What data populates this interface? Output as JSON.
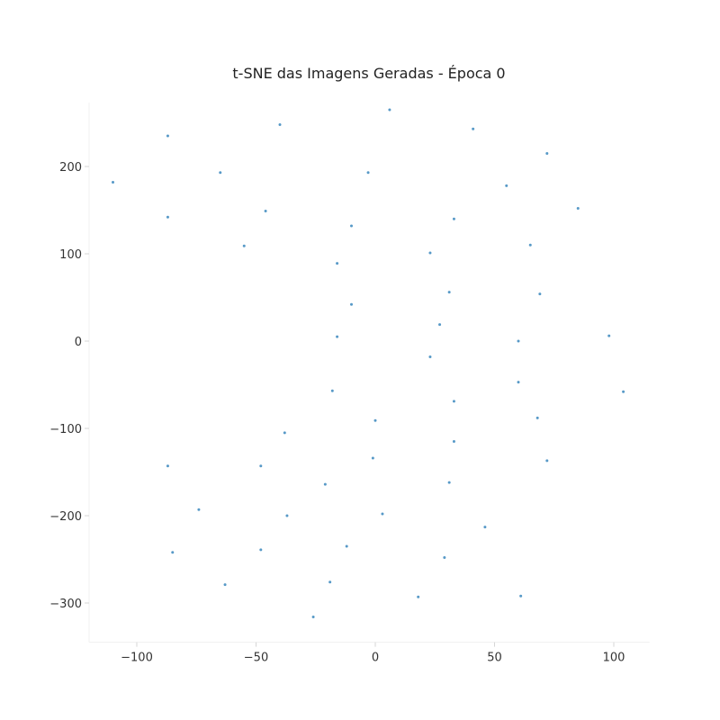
{
  "chart_data": {
    "type": "scatter",
    "title": "t-SNE das Imagens Geradas - Época 0",
    "xlabel": "",
    "ylabel": "",
    "xlim": [
      -120,
      115
    ],
    "ylim": [
      -345,
      265
    ],
    "xticks": [
      -100,
      -50,
      0,
      50,
      100
    ],
    "yticks": [
      200,
      100,
      0,
      -100,
      -200,
      -300
    ],
    "xtick_labels": [
      "−100",
      "−50",
      "0",
      "50",
      "100"
    ],
    "ytick_labels": [
      "200",
      "100",
      "0",
      "−100",
      "−200",
      "−300"
    ],
    "grid": false,
    "point_color": "#1f77b4",
    "series": [
      {
        "x": [
          6,
          41,
          72,
          55,
          85,
          -40,
          -87,
          -65,
          -3,
          -110,
          -46,
          -87,
          -10,
          33,
          65,
          -55,
          23,
          -16,
          31,
          69,
          -10,
          27,
          -16,
          60,
          98,
          23,
          60,
          104,
          -18,
          33,
          68,
          0,
          -38,
          33,
          -1,
          72,
          -87,
          -48,
          -21,
          31,
          -74,
          -37,
          3,
          46,
          -85,
          -48,
          -12,
          29,
          -63,
          -19,
          18,
          61,
          -26
        ],
        "y": [
          265,
          243,
          215,
          178,
          152,
          248,
          235,
          193,
          193,
          182,
          149,
          142,
          132,
          140,
          110,
          109,
          101,
          89,
          56,
          54,
          42,
          19,
          5,
          0,
          6,
          -18,
          -47,
          -58,
          -57,
          -69,
          -88,
          -91,
          -105,
          -115,
          -134,
          -137,
          -143,
          -143,
          -164,
          -162,
          -193,
          -200,
          -198,
          -213,
          -242,
          -239,
          -235,
          -248,
          -279,
          -276,
          -293,
          -292,
          -316
        ]
      }
    ]
  }
}
